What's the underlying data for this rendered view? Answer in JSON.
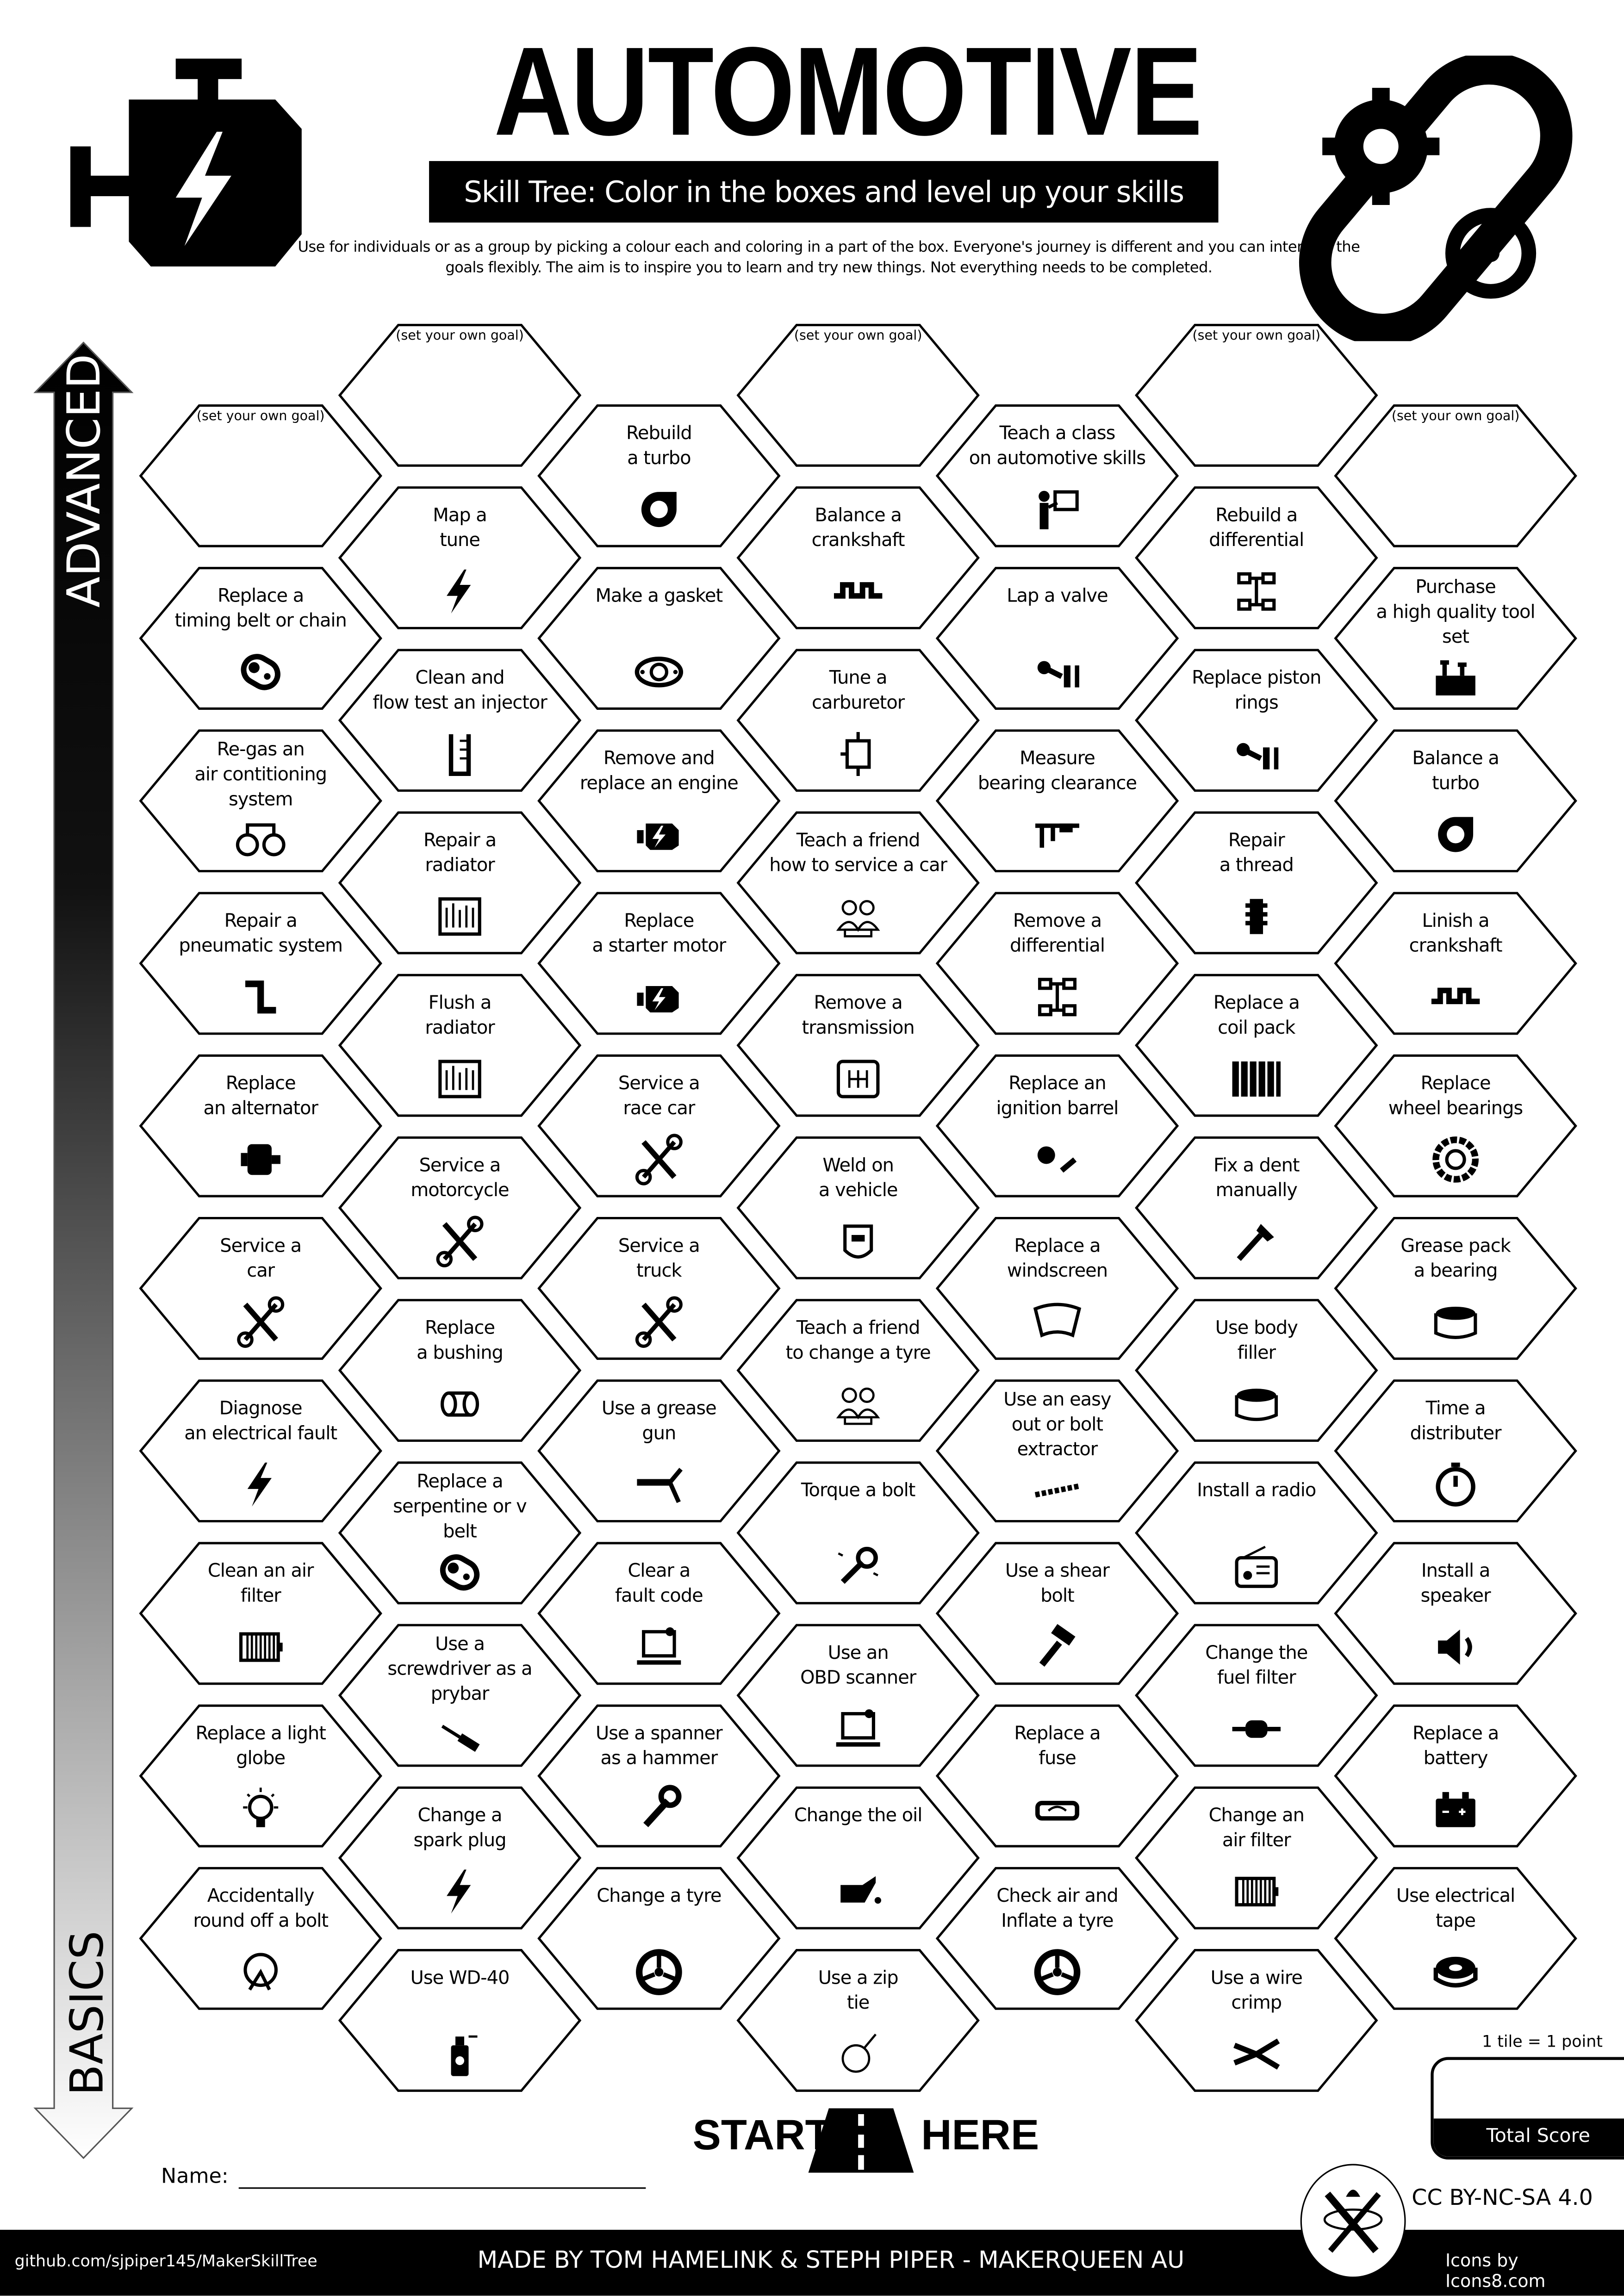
{
  "header": {
    "title": "AUTOMOTIVE",
    "subtitle": "Skill Tree:  Color in the boxes and level up your skills",
    "intro": "Use for individuals or as a group by picking a colour each and coloring in a part of the box.  Everyone's journey is different and you can interpret the goals flexibly.  The aim is to inspire you to learn and try new things. Not everything needs to be completed."
  },
  "arrow": {
    "top_label": "ADVANCED",
    "bottom_label": "BASICS"
  },
  "columns": [
    [
      {
        "goal": "(set your own goal)"
      },
      {
        "label": "Replace a\ntiming belt or chain",
        "icon": "timing-belt"
      },
      {
        "label": "Re-gas an\nair contitioning\nsystem",
        "icon": "gauges"
      },
      {
        "label": "Repair a\npneumatic system",
        "icon": "pipe"
      },
      {
        "label": "Replace\nan alternator",
        "icon": "alternator"
      },
      {
        "label": "Service a\ncar",
        "icon": "tools"
      },
      {
        "label": "Diagnose\nan electrical fault",
        "icon": "bolt"
      },
      {
        "label": "Clean an air\nfilter",
        "icon": "air-filter"
      },
      {
        "label": "Replace a light\nglobe",
        "icon": "bulb"
      },
      {
        "label": "Accidentally\nround off a bolt",
        "icon": "facepalm"
      }
    ],
    [
      {
        "goal": "(set your own goal)"
      },
      {
        "label": "Map a\ntune",
        "icon": "bolt"
      },
      {
        "label": "Clean and\nflow test an injector",
        "icon": "beaker"
      },
      {
        "label": "Repair a\nradiator",
        "icon": "radiator"
      },
      {
        "label": "Flush a\nradiator",
        "icon": "radiator"
      },
      {
        "label": "Service a\nmotorcycle",
        "icon": "tools"
      },
      {
        "label": "Replace\na bushing",
        "icon": "bushing"
      },
      {
        "label": "Replace a\nserpentine or v\nbelt",
        "icon": "timing-belt"
      },
      {
        "label": "Use a\nscrewdriver as a\nprybar",
        "icon": "screwdriver"
      },
      {
        "label": "Change a\nspark plug",
        "icon": "bolt"
      },
      {
        "label": "Use WD-40",
        "icon": "spray-can"
      }
    ],
    [
      {
        "label": "Rebuild\na turbo",
        "icon": "turbo"
      },
      {
        "label": "Make a gasket",
        "icon": "gasket"
      },
      {
        "label": "Remove and\nreplace an engine",
        "icon": "engine"
      },
      {
        "label": "Replace\na starter motor",
        "icon": "engine"
      },
      {
        "label": "Service a\nrace car",
        "icon": "tools"
      },
      {
        "label": "Service a\ntruck",
        "icon": "tools"
      },
      {
        "label": "Use a grease\ngun",
        "icon": "grease-gun"
      },
      {
        "label": "Clear a\nfault code",
        "icon": "laptop"
      },
      {
        "label": "Use a spanner\nas a hammer",
        "icon": "wrench"
      },
      {
        "label": "Change a tyre",
        "icon": "tyre"
      }
    ],
    [
      {
        "goal": "(set your own goal)"
      },
      {
        "label": "Balance a\ncrankshaft",
        "icon": "crankshaft"
      },
      {
        "label": "Tune a\ncarburetor",
        "icon": "carburetor"
      },
      {
        "label": "Teach a friend\nhow to service a car",
        "icon": "people"
      },
      {
        "label": "Remove a\ntransmission",
        "icon": "gearbox"
      },
      {
        "label": "Weld on\na vehicle",
        "icon": "welding-mask"
      },
      {
        "label": "Teach a friend\nto change a tyre",
        "icon": "people"
      },
      {
        "label": "Torque a bolt",
        "icon": "torque-wrench"
      },
      {
        "label": "Use an\nOBD scanner",
        "icon": "laptop"
      },
      {
        "label": "Change the oil",
        "icon": "oil-can"
      },
      {
        "label": "Use a zip\ntie",
        "icon": "zip-tie"
      }
    ],
    [
      {
        "label": "Teach a class\non automotive skills",
        "icon": "teacher"
      },
      {
        "label": "Lap a valve",
        "icon": "piston"
      },
      {
        "label": "Measure\nbearing clearance",
        "icon": "caliper"
      },
      {
        "label": "Remove a\ndifferential",
        "icon": "axle"
      },
      {
        "label": "Replace an\nignition barrel",
        "icon": "key"
      },
      {
        "label": "Replace a\nwindscreen",
        "icon": "windscreen"
      },
      {
        "label": "Use an easy\nout or bolt\nextractor",
        "icon": "drill-bit"
      },
      {
        "label": "Use a shear\nbolt",
        "icon": "hammer"
      },
      {
        "label": "Replace a\nfuse",
        "icon": "fuse"
      },
      {
        "label": "Check air and\nInflate a tyre",
        "icon": "tyre"
      }
    ],
    [
      {
        "goal": "(set your own goal)"
      },
      {
        "label": "Rebuild a\ndifferential",
        "icon": "axle"
      },
      {
        "label": "Replace piston\nrings",
        "icon": "piston"
      },
      {
        "label": "Repair\na thread",
        "icon": "thread"
      },
      {
        "label": "Replace a\ncoil pack",
        "icon": "coil-pack"
      },
      {
        "label": "Fix a dent\nmanually",
        "icon": "dent-hammer"
      },
      {
        "label": "Use body\nfiller",
        "icon": "tub"
      },
      {
        "label": "Install a radio",
        "icon": "radio"
      },
      {
        "label": "Change the\nfuel filter",
        "icon": "fuel-filter"
      },
      {
        "label": "Change an\nair filter",
        "icon": "air-filter"
      },
      {
        "label": "Use a wire\ncrimp",
        "icon": "crimper"
      }
    ],
    [
      {
        "goal": "(set your own goal)"
      },
      {
        "label": "Purchase\na high quality tool\nset",
        "icon": "toolbox"
      },
      {
        "label": "Balance a\nturbo",
        "icon": "turbo"
      },
      {
        "label": "Linish a\ncrankshaft",
        "icon": "crankshaft"
      },
      {
        "label": "Replace\nwheel bearings",
        "icon": "bearing"
      },
      {
        "label": "Grease pack\na bearing",
        "icon": "tub"
      },
      {
        "label": "Time a\ndistributer",
        "icon": "stopwatch"
      },
      {
        "label": "Install a\nspeaker",
        "icon": "speaker"
      },
      {
        "label": "Replace a\nbattery",
        "icon": "battery"
      },
      {
        "label": "Use electrical\ntape",
        "icon": "tape"
      }
    ]
  ],
  "start": {
    "left": "START",
    "right": "HERE"
  },
  "name_label": "Name:",
  "score": {
    "note": "1 tile = 1 point",
    "label": "Total Score"
  },
  "license": "CC BY-NC-SA 4.0",
  "footer": {
    "github": "github.com/sjpiper145/MakerSkillTree",
    "made_by": "MADE BY TOM HAMELINK & STEPH PIPER  -  MAKERQUEEN AU",
    "icons_credit": "Icons by Icons8.com"
  }
}
